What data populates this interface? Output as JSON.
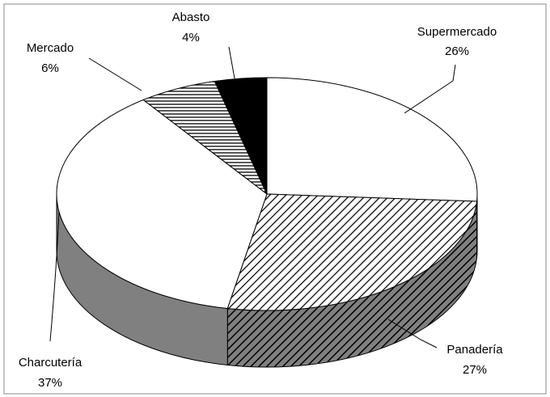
{
  "chart_data": {
    "type": "pie",
    "categories": [
      "Supermercado",
      "Panadería",
      "Charcutería",
      "Mercado",
      "Abasto"
    ],
    "values": [
      26,
      27,
      37,
      6,
      4
    ],
    "value_labels": [
      "26%",
      "27%",
      "37%",
      "6%",
      "4%"
    ]
  }
}
